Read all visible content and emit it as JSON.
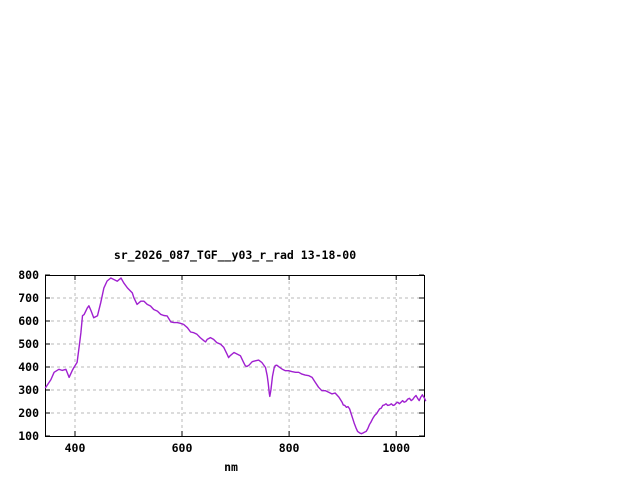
{
  "page": {
    "background": "#ffffff"
  },
  "chart_data": {
    "type": "line",
    "title": "sr_2026_087_TGF__y03_r_rad 13-18-00",
    "xlabel": "nm",
    "ylabel": "",
    "xlim": [
      344,
      1052
    ],
    "ylim": [
      100,
      800
    ],
    "x_ticks": [
      400,
      600,
      800,
      1000
    ],
    "y_ticks": [
      100,
      200,
      300,
      400,
      500,
      600,
      700,
      800
    ],
    "grid": true,
    "legend_position": "none",
    "line_color": "#A020D0",
    "grid_color": "#b8b8b8",
    "frame_color": "#000000",
    "series": [
      {
        "name": "sr_2026_087_TGF__y03_r_rad",
        "points": [
          [
            345,
            310
          ],
          [
            348,
            320
          ],
          [
            355,
            345
          ],
          [
            361,
            377
          ],
          [
            370,
            390
          ],
          [
            376,
            385
          ],
          [
            383,
            390
          ],
          [
            389,
            355
          ],
          [
            395,
            385
          ],
          [
            398,
            398
          ],
          [
            404,
            420
          ],
          [
            408,
            493
          ],
          [
            411,
            549
          ],
          [
            414,
            623
          ],
          [
            417,
            628
          ],
          [
            423,
            657
          ],
          [
            426,
            666
          ],
          [
            430,
            645
          ],
          [
            435,
            614
          ],
          [
            442,
            623
          ],
          [
            448,
            679
          ],
          [
            454,
            744
          ],
          [
            460,
            774
          ],
          [
            467,
            787
          ],
          [
            473,
            780
          ],
          [
            479,
            773
          ],
          [
            486,
            787
          ],
          [
            491,
            766
          ],
          [
            498,
            744
          ],
          [
            501,
            737
          ],
          [
            507,
            722
          ],
          [
            510,
            701
          ],
          [
            516,
            672
          ],
          [
            523,
            686
          ],
          [
            529,
            686
          ],
          [
            535,
            672
          ],
          [
            541,
            665
          ],
          [
            547,
            650
          ],
          [
            554,
            643
          ],
          [
            560,
            629
          ],
          [
            566,
            624
          ],
          [
            572,
            622
          ],
          [
            579,
            596
          ],
          [
            585,
            593
          ],
          [
            591,
            593
          ],
          [
            597,
            590
          ],
          [
            603,
            585
          ],
          [
            610,
            571
          ],
          [
            616,
            552
          ],
          [
            622,
            549
          ],
          [
            628,
            542
          ],
          [
            634,
            528
          ],
          [
            641,
            514
          ],
          [
            644,
            509
          ],
          [
            647,
            520
          ],
          [
            653,
            528
          ],
          [
            659,
            520
          ],
          [
            665,
            506
          ],
          [
            672,
            499
          ],
          [
            678,
            485
          ],
          [
            684,
            456
          ],
          [
            687,
            441
          ],
          [
            690,
            449
          ],
          [
            697,
            463
          ],
          [
            703,
            456
          ],
          [
            709,
            449
          ],
          [
            715,
            420
          ],
          [
            718,
            406
          ],
          [
            721,
            402
          ],
          [
            725,
            408
          ],
          [
            731,
            423
          ],
          [
            737,
            427
          ],
          [
            743,
            430
          ],
          [
            749,
            420
          ],
          [
            756,
            398
          ],
          [
            759,
            362
          ],
          [
            761,
            330
          ],
          [
            763,
            285
          ],
          [
            764,
            272
          ],
          [
            766,
            300
          ],
          [
            769,
            360
          ],
          [
            772,
            395
          ],
          [
            774,
            406
          ],
          [
            777,
            408
          ],
          [
            781,
            401
          ],
          [
            787,
            391
          ],
          [
            793,
            384
          ],
          [
            799,
            384
          ],
          [
            805,
            380
          ],
          [
            812,
            377
          ],
          [
            818,
            377
          ],
          [
            824,
            369
          ],
          [
            830,
            365
          ],
          [
            837,
            362
          ],
          [
            843,
            355
          ],
          [
            849,
            333
          ],
          [
            855,
            312
          ],
          [
            861,
            297
          ],
          [
            868,
            297
          ],
          [
            874,
            290
          ],
          [
            880,
            283
          ],
          [
            886,
            287
          ],
          [
            893,
            269
          ],
          [
            899,
            247
          ],
          [
            901,
            235
          ],
          [
            904,
            233
          ],
          [
            907,
            225
          ],
          [
            910,
            228
          ],
          [
            913,
            218
          ],
          [
            916,
            196
          ],
          [
            919,
            175
          ],
          [
            922,
            153
          ],
          [
            925,
            135
          ],
          [
            928,
            120
          ],
          [
            932,
            113
          ],
          [
            935,
            110
          ],
          [
            938,
            113
          ],
          [
            941,
            117
          ],
          [
            944,
            120
          ],
          [
            947,
            132
          ],
          [
            950,
            149
          ],
          [
            953,
            161
          ],
          [
            956,
            175
          ],
          [
            960,
            190
          ],
          [
            963,
            196
          ],
          [
            966,
            207
          ],
          [
            969,
            218
          ],
          [
            972,
            221
          ],
          [
            975,
            233
          ],
          [
            978,
            235
          ],
          [
            981,
            240
          ],
          [
            984,
            233
          ],
          [
            988,
            235
          ],
          [
            991,
            240
          ],
          [
            994,
            233
          ],
          [
            997,
            235
          ],
          [
            1000,
            243
          ],
          [
            1003,
            247
          ],
          [
            1006,
            240
          ],
          [
            1009,
            247
          ],
          [
            1012,
            254
          ],
          [
            1015,
            247
          ],
          [
            1018,
            250
          ],
          [
            1022,
            261
          ],
          [
            1025,
            264
          ],
          [
            1028,
            254
          ],
          [
            1031,
            259
          ],
          [
            1034,
            269
          ],
          [
            1037,
            276
          ],
          [
            1040,
            264
          ],
          [
            1043,
            254
          ],
          [
            1046,
            269
          ],
          [
            1049,
            279
          ],
          [
            1053,
            264
          ],
          [
            1055,
            254
          ]
        ]
      }
    ]
  }
}
